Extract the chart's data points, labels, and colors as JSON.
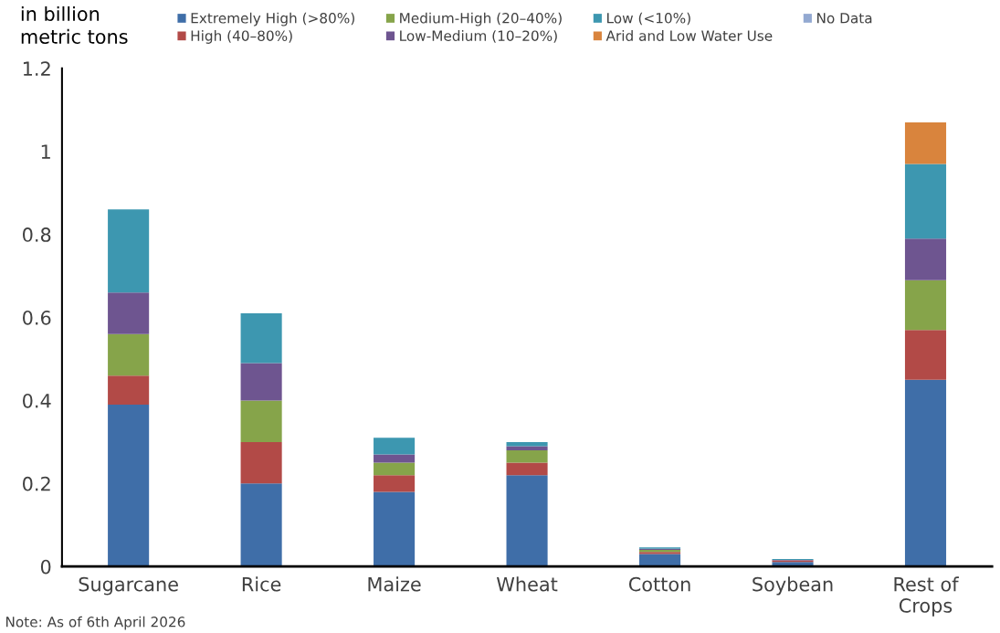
{
  "chart_data": {
    "type": "bar",
    "stacked": true,
    "ylabel": "in billion\nmetric tons",
    "categories": [
      "Sugarcane",
      "Rice",
      "Maize",
      "Wheat",
      "Cotton",
      "Soybean",
      "Rest of\nCrops"
    ],
    "series": [
      {
        "name": "Extremely High (>80%)",
        "color": "#3f6ea8",
        "values": [
          0.39,
          0.2,
          0.18,
          0.22,
          0.03,
          0.011,
          0.45
        ]
      },
      {
        "name": "High (40–80%)",
        "color": "#b24a47",
        "values": [
          0.07,
          0.1,
          0.04,
          0.03,
          0.005,
          0.004,
          0.12
        ]
      },
      {
        "name": "Medium-High (20–40%)",
        "color": "#86a44a",
        "values": [
          0.1,
          0.1,
          0.03,
          0.03,
          0.005,
          null,
          0.12
        ]
      },
      {
        "name": "Low-Medium (10–20%)",
        "color": "#6e5590",
        "values": [
          0.1,
          0.09,
          0.02,
          0.01,
          0.003,
          0.001,
          0.1
        ]
      },
      {
        "name": "Low (<10%)",
        "color": "#3d97b0",
        "values": [
          0.2,
          0.12,
          0.04,
          0.01,
          0.003,
          0.002,
          0.18
        ]
      },
      {
        "name": "Arid and Low Water Use",
        "color": "#d9843d",
        "values": [
          null,
          null,
          null,
          null,
          null,
          null,
          0.1
        ]
      },
      {
        "name": "No Data",
        "color": "#93a9d1",
        "values": [
          null,
          null,
          null,
          null,
          null,
          null,
          null
        ]
      }
    ],
    "ylim": [
      0,
      1.2
    ],
    "yticks": [
      0,
      0.2,
      0.4,
      0.6,
      0.8,
      1,
      1.2
    ],
    "grid": false,
    "legend": "top",
    "annotations": [
      "Note: As of 6th April 2026"
    ]
  }
}
